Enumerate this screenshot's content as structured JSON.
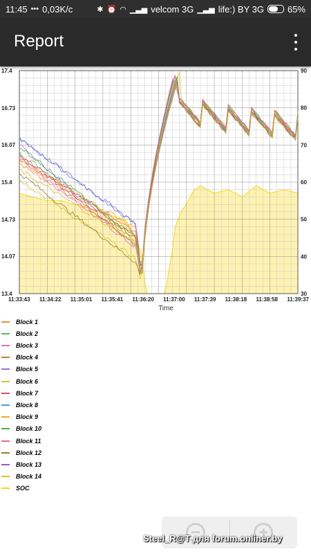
{
  "status_bar": {
    "time": "11:45",
    "speed": "0,03K/c",
    "carrier1": "velcom 3G",
    "carrier2": "life:) BY 3G",
    "battery": "65%"
  },
  "app_bar": {
    "title": "Report",
    "more_icon": "more-vert-icon"
  },
  "chart_data": {
    "type": "line",
    "xlabel": "Time",
    "x_ticks": [
      "11:33:43",
      "11:34:22",
      "11:35:01",
      "11:35:41",
      "11:36:20",
      "11:37:00",
      "11:37:39",
      "11:38:18",
      "11:38:58",
      "11:39:37"
    ],
    "y_left_ticks": [
      "17.4",
      "16.73",
      "16.07",
      "15.4",
      "14.73",
      "14.07",
      "13.4"
    ],
    "y_right_ticks": [
      "90",
      "80",
      "70",
      "60",
      "50",
      "40",
      "30"
    ],
    "ylim_left": [
      13.4,
      17.4
    ],
    "ylim_right": [
      30,
      90
    ],
    "grid": true,
    "series": [
      {
        "name": "Block 1",
        "color": "#f0883e"
      },
      {
        "name": "Block 2",
        "color": "#5cb85c"
      },
      {
        "name": "Block 3",
        "color": "#e66ac0"
      },
      {
        "name": "Block 4",
        "color": "#b8862e"
      },
      {
        "name": "Block 5",
        "color": "#a56bd3"
      },
      {
        "name": "Block 6",
        "color": "#c9c93a"
      },
      {
        "name": "Block 7",
        "color": "#e64c4c"
      },
      {
        "name": "Block 8",
        "color": "#4c9be6"
      },
      {
        "name": "Block 9",
        "color": "#f5a623"
      },
      {
        "name": "Block 10",
        "color": "#4cae4c"
      },
      {
        "name": "Block 11",
        "color": "#f06292"
      },
      {
        "name": "Block 12",
        "color": "#a07a2a"
      },
      {
        "name": "Block 13",
        "color": "#9b59b6"
      },
      {
        "name": "Block 14",
        "color": "#d4c21c"
      },
      {
        "name": "SOC",
        "color": "#f5d90a"
      }
    ],
    "soc": {
      "x_fraction": [
        0,
        0.05,
        0.1,
        0.15,
        0.2,
        0.25,
        0.3,
        0.33,
        0.38,
        0.42,
        0.44,
        0.45,
        0.46,
        0.47,
        0.5,
        0.52,
        0.53,
        0.55,
        0.56,
        0.58,
        0.6,
        0.62,
        0.63,
        0.65,
        0.7,
        0.75,
        0.8,
        0.85,
        0.9,
        0.95,
        1.0
      ],
      "values": [
        57,
        56,
        55,
        55,
        54,
        53,
        52,
        51,
        50,
        45,
        40,
        33,
        30,
        30,
        30,
        30,
        33,
        42,
        48,
        52,
        54,
        57,
        58,
        59,
        57,
        58,
        56,
        59,
        57,
        58,
        57
      ]
    }
  },
  "watermark": "Steel_R@T для forum.onliner.by",
  "zoom": {
    "out_icon": "zoom-out-icon",
    "in_icon": "zoom-in-icon"
  }
}
